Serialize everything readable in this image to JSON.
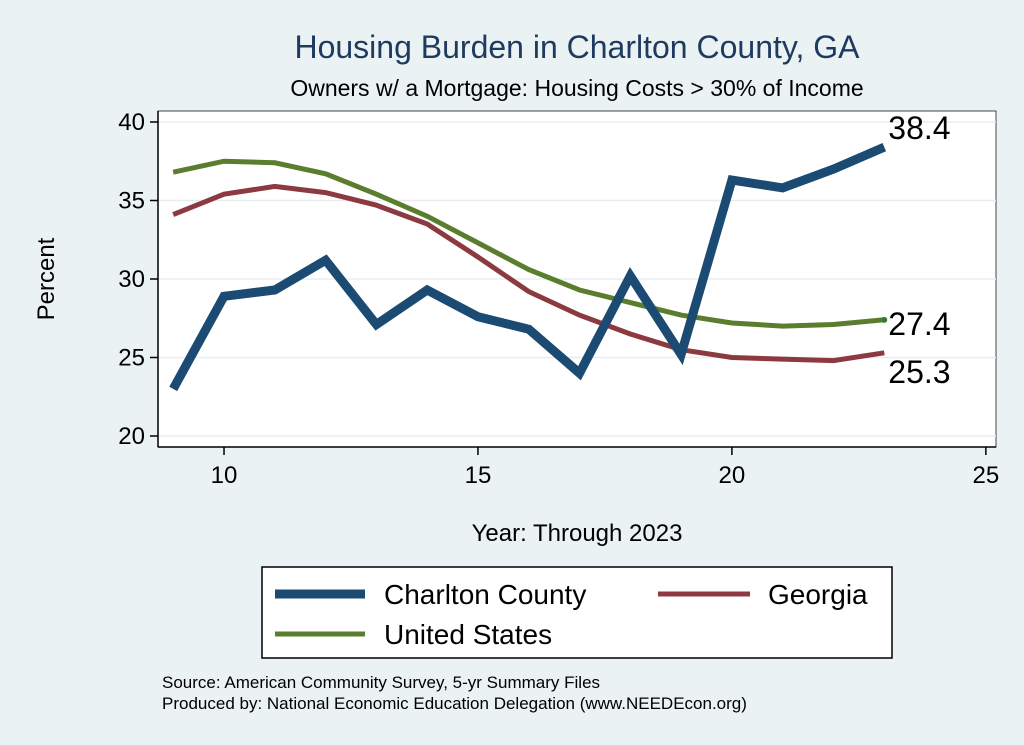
{
  "chart_data": {
    "type": "line",
    "title": "Housing Burden in Charlton County, GA",
    "subtitle": "Owners w/ a Mortgage: Housing Costs > 30% of Income",
    "xlabel": "Year: Through 2023",
    "ylabel": "Percent",
    "xlim": [
      8.7,
      25.2
    ],
    "ylim": [
      19.3,
      40.7
    ],
    "x_ticks": [
      10,
      15,
      20,
      25
    ],
    "y_ticks": [
      20,
      25,
      30,
      35,
      40
    ],
    "grid": true,
    "legend_position": "bottom",
    "x": [
      9,
      10,
      11,
      12,
      13,
      14,
      15,
      16,
      17,
      18,
      19,
      20,
      21,
      22,
      23
    ],
    "series": [
      {
        "name": "Charlton County",
        "color": "#1b4a72",
        "values": [
          23.0,
          28.9,
          29.3,
          31.2,
          27.1,
          29.3,
          27.6,
          26.8,
          24.0,
          30.2,
          25.2,
          36.3,
          35.8,
          37.0,
          38.4
        ],
        "end_label": "38.4"
      },
      {
        "name": "Georgia",
        "color": "#8c3a3f",
        "values": [
          34.1,
          35.4,
          35.9,
          35.5,
          34.7,
          33.5,
          31.4,
          29.2,
          27.7,
          26.5,
          25.5,
          25.0,
          24.9,
          24.8,
          25.3
        ],
        "end_label": "25.3"
      },
      {
        "name": "United States",
        "color": "#5a7d2e",
        "values": [
          36.8,
          37.5,
          37.4,
          36.7,
          35.4,
          34.0,
          32.3,
          30.6,
          29.3,
          28.5,
          27.7,
          27.2,
          27.0,
          27.1,
          27.4
        ],
        "end_label": "27.4"
      }
    ]
  },
  "source": {
    "line1": "Source: American Community Survey, 5-yr Summary Files",
    "line2": "Produced by: National Economic Education Delegation (www.NEEDEcon.org)"
  }
}
